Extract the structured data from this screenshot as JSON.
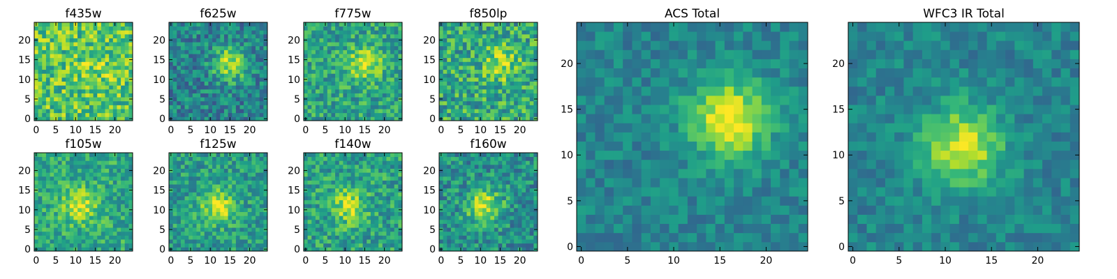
{
  "figure": {
    "colormap": "viridis"
  },
  "chart_data": [
    {
      "type": "heatmap",
      "title": "f435w",
      "grid_size": 25,
      "xticks": [
        "0",
        "5",
        "10",
        "15",
        "20"
      ],
      "yticks": [
        "0",
        "5",
        "10",
        "15",
        "20"
      ],
      "xlim": [
        -0.5,
        24.5
      ],
      "ylim": [
        -0.5,
        24.5
      ],
      "value_range": [
        0,
        1
      ],
      "peak": {
        "x": 15,
        "y": 14
      },
      "peak_strength": 0.12,
      "background_level": 0.72,
      "noise": 0.24,
      "seed": 11
    },
    {
      "type": "heatmap",
      "title": "f625w",
      "grid_size": 25,
      "xticks": [
        "0",
        "5",
        "10",
        "15",
        "20"
      ],
      "yticks": [
        "0",
        "5",
        "10",
        "15",
        "20"
      ],
      "xlim": [
        -0.5,
        24.5
      ],
      "ylim": [
        -0.5,
        24.5
      ],
      "value_range": [
        0,
        1
      ],
      "peak": {
        "x": 15,
        "y": 14
      },
      "peak_strength": 0.45,
      "background_level": 0.45,
      "noise": 0.2,
      "seed": 23
    },
    {
      "type": "heatmap",
      "title": "f775w",
      "grid_size": 25,
      "xticks": [
        "0",
        "5",
        "10",
        "15",
        "20"
      ],
      "yticks": [
        "0",
        "5",
        "10",
        "15",
        "20"
      ],
      "xlim": [
        -0.5,
        24.5
      ],
      "ylim": [
        -0.5,
        24.5
      ],
      "value_range": [
        0,
        1
      ],
      "peak": {
        "x": 15,
        "y": 14
      },
      "peak_strength": 0.35,
      "background_level": 0.58,
      "noise": 0.2,
      "seed": 37
    },
    {
      "type": "heatmap",
      "title": "f850lp",
      "grid_size": 25,
      "xticks": [
        "0",
        "5",
        "10",
        "15",
        "20"
      ],
      "yticks": [
        "0",
        "5",
        "10",
        "15",
        "20"
      ],
      "xlim": [
        -0.5,
        24.5
      ],
      "ylim": [
        -0.5,
        24.5
      ],
      "value_range": [
        0,
        1
      ],
      "peak": {
        "x": 15,
        "y": 14
      },
      "peak_strength": 0.3,
      "background_level": 0.6,
      "noise": 0.24,
      "seed": 41
    },
    {
      "type": "heatmap",
      "title": "f105w",
      "grid_size": 25,
      "xticks": [
        "0",
        "5",
        "10",
        "15",
        "20"
      ],
      "yticks": [
        "0",
        "5",
        "10",
        "15",
        "20"
      ],
      "xlim": [
        -0.5,
        24.5
      ],
      "ylim": [
        -0.5,
        24.5
      ],
      "value_range": [
        0,
        1
      ],
      "peak": {
        "x": 11,
        "y": 11
      },
      "peak_strength": 0.35,
      "background_level": 0.6,
      "noise": 0.18,
      "seed": 53
    },
    {
      "type": "heatmap",
      "title": "f125w",
      "grid_size": 25,
      "xticks": [
        "0",
        "5",
        "10",
        "15",
        "20"
      ],
      "yticks": [
        "0",
        "5",
        "10",
        "15",
        "20"
      ],
      "xlim": [
        -0.5,
        24.5
      ],
      "ylim": [
        -0.5,
        24.5
      ],
      "value_range": [
        0,
        1
      ],
      "peak": {
        "x": 12,
        "y": 11
      },
      "peak_strength": 0.4,
      "background_level": 0.55,
      "noise": 0.18,
      "seed": 67
    },
    {
      "type": "heatmap",
      "title": "f140w",
      "grid_size": 25,
      "xticks": [
        "0",
        "5",
        "10",
        "15",
        "20"
      ],
      "yticks": [
        "0",
        "5",
        "10",
        "15",
        "20"
      ],
      "xlim": [
        -0.5,
        24.5
      ],
      "ylim": [
        -0.5,
        24.5
      ],
      "value_range": [
        0,
        1
      ],
      "peak": {
        "x": 11,
        "y": 11
      },
      "peak_strength": 0.35,
      "background_level": 0.57,
      "noise": 0.2,
      "seed": 71
    },
    {
      "type": "heatmap",
      "title": "f160w",
      "grid_size": 25,
      "xticks": [
        "0",
        "5",
        "10",
        "15",
        "20"
      ],
      "yticks": [
        "0",
        "5",
        "10",
        "15",
        "20"
      ],
      "xlim": [
        -0.5,
        24.5
      ],
      "ylim": [
        -0.5,
        24.5
      ],
      "value_range": [
        0,
        1
      ],
      "peak": {
        "x": 11,
        "y": 11
      },
      "peak_strength": 0.45,
      "background_level": 0.5,
      "noise": 0.2,
      "seed": 83
    },
    {
      "type": "heatmap",
      "title": "ACS Total",
      "grid_size": 25,
      "xticks": [
        "0",
        "5",
        "10",
        "15",
        "20"
      ],
      "yticks": [
        "0",
        "5",
        "10",
        "15",
        "20"
      ],
      "xlim": [
        -0.5,
        24.5
      ],
      "ylim": [
        -0.5,
        24.5
      ],
      "value_range": [
        0,
        1
      ],
      "peak": {
        "x": 16,
        "y": 14
      },
      "peak_strength": 0.55,
      "background_level": 0.45,
      "noise": 0.12,
      "seed": 97
    },
    {
      "type": "heatmap",
      "title": "WFC3 IR Total",
      "grid_size": 25,
      "xticks": [
        "0",
        "5",
        "10",
        "15",
        "20"
      ],
      "yticks": [
        "0",
        "5",
        "10",
        "15",
        "20"
      ],
      "xlim": [
        -0.5,
        24.5
      ],
      "ylim": [
        -0.5,
        24.5
      ],
      "value_range": [
        0,
        1
      ],
      "peak": {
        "x": 12,
        "y": 11
      },
      "peak_strength": 0.5,
      "background_level": 0.45,
      "noise": 0.12,
      "seed": 101
    }
  ]
}
